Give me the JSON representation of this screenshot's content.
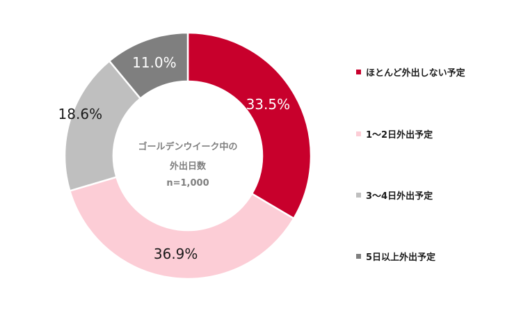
{
  "chart_data": {
    "type": "pie",
    "subtype": "donut",
    "title": "",
    "center_label": [
      "ゴールデンウイーク中の",
      "外出日数",
      "n=1,000"
    ],
    "categories": [
      "ほとんど外出しない予定",
      "1〜2日外出予定",
      "3〜4日外出予定",
      "5日以上外出予定"
    ],
    "values": [
      33.5,
      36.9,
      18.6,
      11.0
    ],
    "labels": [
      "33.5%",
      "36.9%",
      "18.6%",
      "11.0%"
    ],
    "colors": [
      "#c8002c",
      "#fccdd6",
      "#bfbfbf",
      "#7f7f7f"
    ],
    "label_colors": [
      "#ffffff",
      "#1a1a1a",
      "#1a1a1a",
      "#ffffff"
    ],
    "legend_position": "right",
    "n": 1000
  },
  "center": {
    "line1": "ゴールデンウイーク中の",
    "line2": "外出日数",
    "line3": "n=1,000"
  },
  "legend": [
    {
      "label": "ほとんど外出しない予定",
      "color": "#c8002c"
    },
    {
      "label": "1〜2日外出予定",
      "color": "#fccdd6"
    },
    {
      "label": "3〜4日外出予定",
      "color": "#bfbfbf"
    },
    {
      "label": "5日以上外出予定",
      "color": "#7f7f7f"
    }
  ],
  "slices": [
    {
      "label": "33.5%"
    },
    {
      "label": "36.9%"
    },
    {
      "label": "18.6%"
    },
    {
      "label": "11.0%"
    }
  ]
}
